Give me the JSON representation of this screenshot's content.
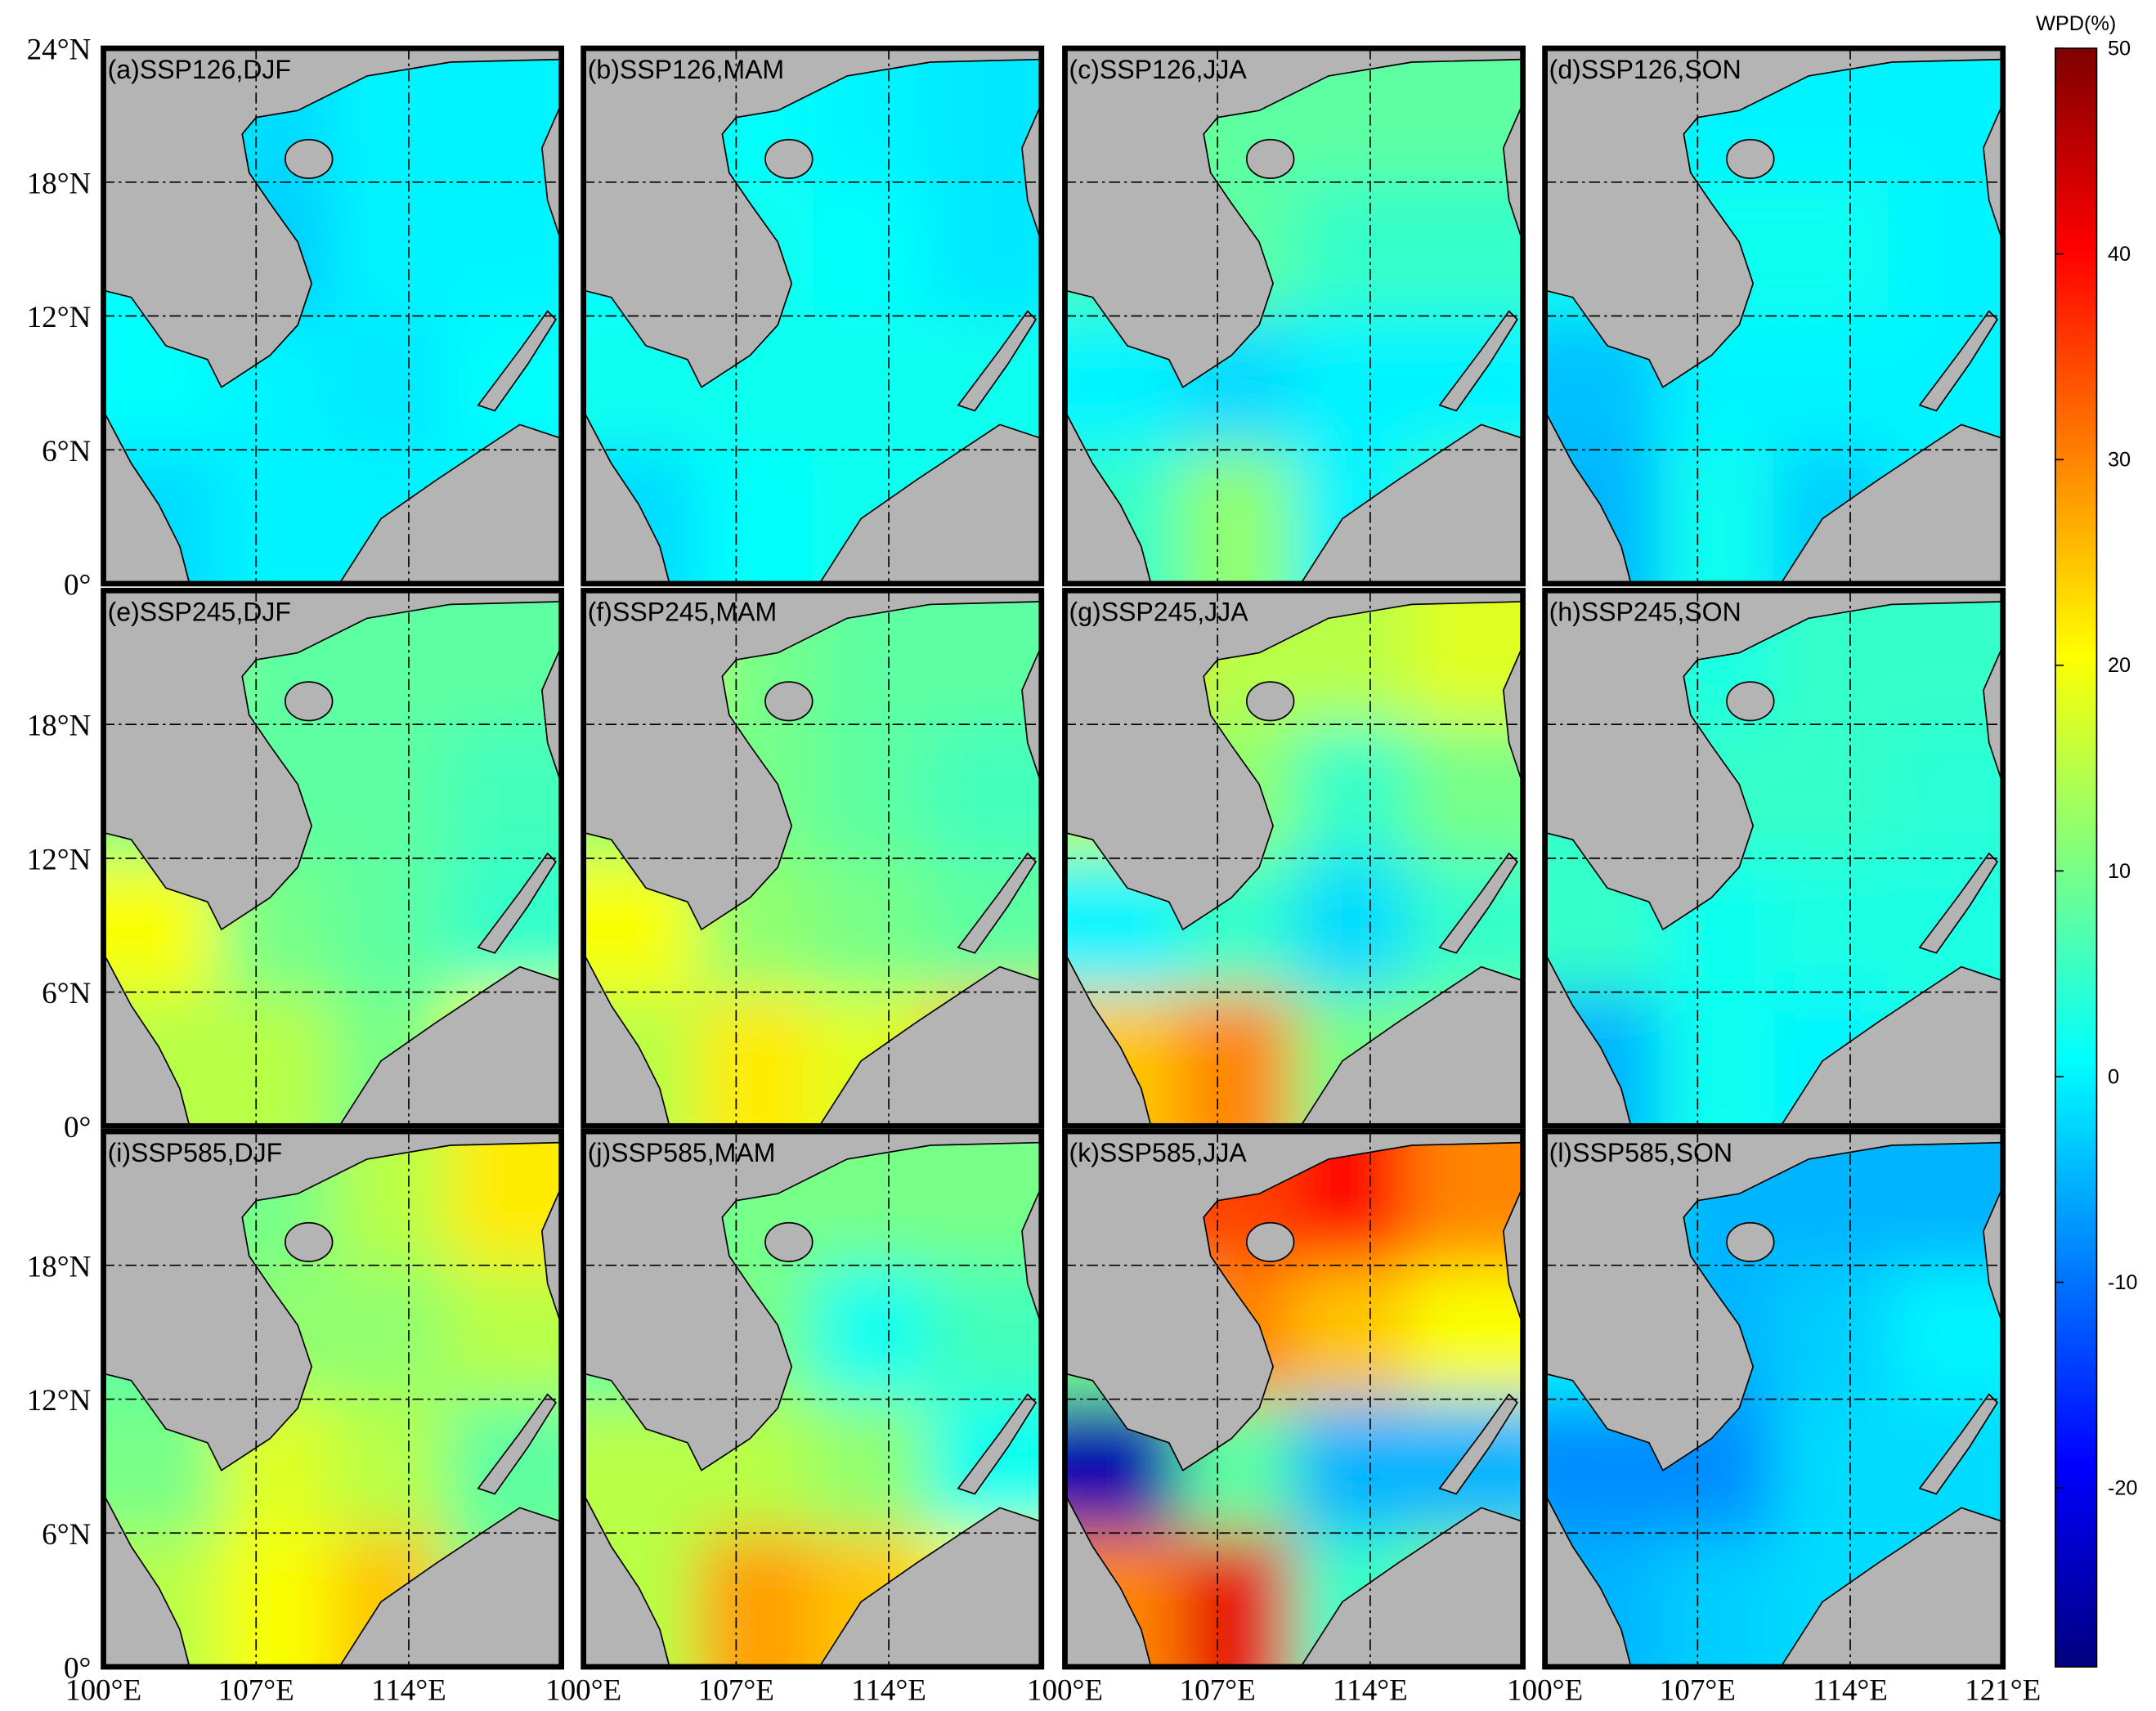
{
  "colorbar": {
    "title": "WPD(%)",
    "lim": [
      -28.7,
      50
    ],
    "ticks": [
      50,
      40,
      30,
      20,
      10,
      0,
      -10,
      -20
    ]
  },
  "lat_lim": [
    0,
    24
  ],
  "lon_lim": [
    100,
    121
  ],
  "lat_ticks": [
    [
      {
        "value": 24,
        "label": "24°N"
      },
      {
        "value": 18,
        "label": "18°N"
      },
      {
        "value": 12,
        "label": "12°N"
      },
      {
        "value": 6,
        "label": "6°N"
      },
      {
        "value": 0,
        "label": "0°"
      }
    ],
    [
      {
        "value": 18,
        "label": "18°N"
      },
      {
        "value": 12,
        "label": "12°N"
      },
      {
        "value": 6,
        "label": "6°N"
      },
      {
        "value": 0,
        "label": "0°"
      }
    ],
    [
      {
        "value": 18,
        "label": "18°N"
      },
      {
        "value": 12,
        "label": "12°N"
      },
      {
        "value": 6,
        "label": "6°N"
      },
      {
        "value": 0,
        "label": "0°"
      }
    ]
  ],
  "lon_ticks": [
    [
      {
        "value": 100,
        "label": "100°E"
      },
      {
        "value": 107,
        "label": "107°E"
      },
      {
        "value": 114,
        "label": "114°E"
      }
    ],
    [
      {
        "value": 100,
        "label": "100°E"
      },
      {
        "value": 107,
        "label": "107°E"
      },
      {
        "value": 114,
        "label": "114°E"
      }
    ],
    [
      {
        "value": 100,
        "label": "100°E"
      },
      {
        "value": 107,
        "label": "107°E"
      },
      {
        "value": 114,
        "label": "114°E"
      }
    ],
    [
      {
        "value": 100,
        "label": "100°E"
      },
      {
        "value": 107,
        "label": "107°E"
      },
      {
        "value": 114,
        "label": "114°E"
      },
      {
        "value": 121,
        "label": "121°E"
      }
    ]
  ],
  "panels": [
    {
      "label": "(a)SSP126,DJF",
      "grid": [
        [
          2,
          -2,
          0,
          0
        ],
        [
          1,
          -3,
          0,
          0
        ],
        [
          1,
          0,
          -1,
          1
        ],
        [
          -2,
          0,
          0,
          0
        ]
      ]
    },
    {
      "label": "(b)SSP126,MAM",
      "grid": [
        [
          2,
          1,
          0,
          -1
        ],
        [
          1,
          2,
          1,
          -1
        ],
        [
          2,
          2,
          2,
          2
        ],
        [
          -2,
          1,
          2,
          2
        ]
      ]
    },
    {
      "label": "(c)SSP126,JJA",
      "grid": [
        [
          12,
          8,
          8,
          8
        ],
        [
          6,
          8,
          5,
          5
        ],
        [
          0,
          -2,
          0,
          0
        ],
        [
          5,
          12,
          0,
          5
        ]
      ]
    },
    {
      "label": "(d)SSP126,SON",
      "grid": [
        [
          3,
          0,
          0,
          0
        ],
        [
          2,
          2,
          2,
          0
        ],
        [
          -4,
          0,
          0,
          0
        ],
        [
          -5,
          2,
          -3,
          0
        ]
      ]
    },
    {
      "label": "(e)SSP245,DJF",
      "grid": [
        [
          15,
          8,
          8,
          8
        ],
        [
          10,
          8,
          8,
          6
        ],
        [
          20,
          10,
          8,
          5
        ],
        [
          15,
          15,
          10,
          20
        ]
      ]
    },
    {
      "label": "(f)SSP245,MAM",
      "grid": [
        [
          20,
          10,
          8,
          8
        ],
        [
          12,
          10,
          8,
          6
        ],
        [
          20,
          12,
          10,
          8
        ],
        [
          15,
          22,
          18,
          25
        ]
      ]
    },
    {
      "label": "(g)SSP245,JJA",
      "grid": [
        [
          28,
          15,
          15,
          18
        ],
        [
          15,
          12,
          5,
          10
        ],
        [
          0,
          5,
          -2,
          5
        ],
        [
          25,
          30,
          10,
          10
        ]
      ]
    },
    {
      "label": "(h)SSP245,SON",
      "grid": [
        [
          5,
          3,
          5,
          5
        ],
        [
          5,
          5,
          5,
          4
        ],
        [
          5,
          2,
          3,
          3
        ],
        [
          -5,
          2,
          0,
          3
        ]
      ]
    },
    {
      "label": "(i)SSP585,DJF",
      "grid": [
        [
          8,
          10,
          15,
          22
        ],
        [
          8,
          12,
          12,
          15
        ],
        [
          10,
          18,
          15,
          8
        ],
        [
          15,
          20,
          25,
          10
        ]
      ]
    },
    {
      "label": "(j)SSP585,MAM",
      "grid": [
        [
          8,
          10,
          10,
          10
        ],
        [
          8,
          10,
          2,
          6
        ],
        [
          15,
          15,
          12,
          2
        ],
        [
          15,
          28,
          25,
          20
        ]
      ]
    },
    {
      "label": "(k)SSP585,JJA",
      "grid": [
        [
          35,
          35,
          40,
          30
        ],
        [
          10,
          30,
          25,
          20
        ],
        [
          -25,
          8,
          -5,
          -5
        ],
        [
          30,
          42,
          5,
          10
        ]
      ]
    },
    {
      "label": "(l)SSP585,SON",
      "grid": [
        [
          2,
          -5,
          -5,
          -5
        ],
        [
          0,
          -5,
          -3,
          0
        ],
        [
          -8,
          -8,
          -2,
          -2
        ],
        [
          -5,
          -3,
          -2,
          -2
        ]
      ]
    }
  ]
}
